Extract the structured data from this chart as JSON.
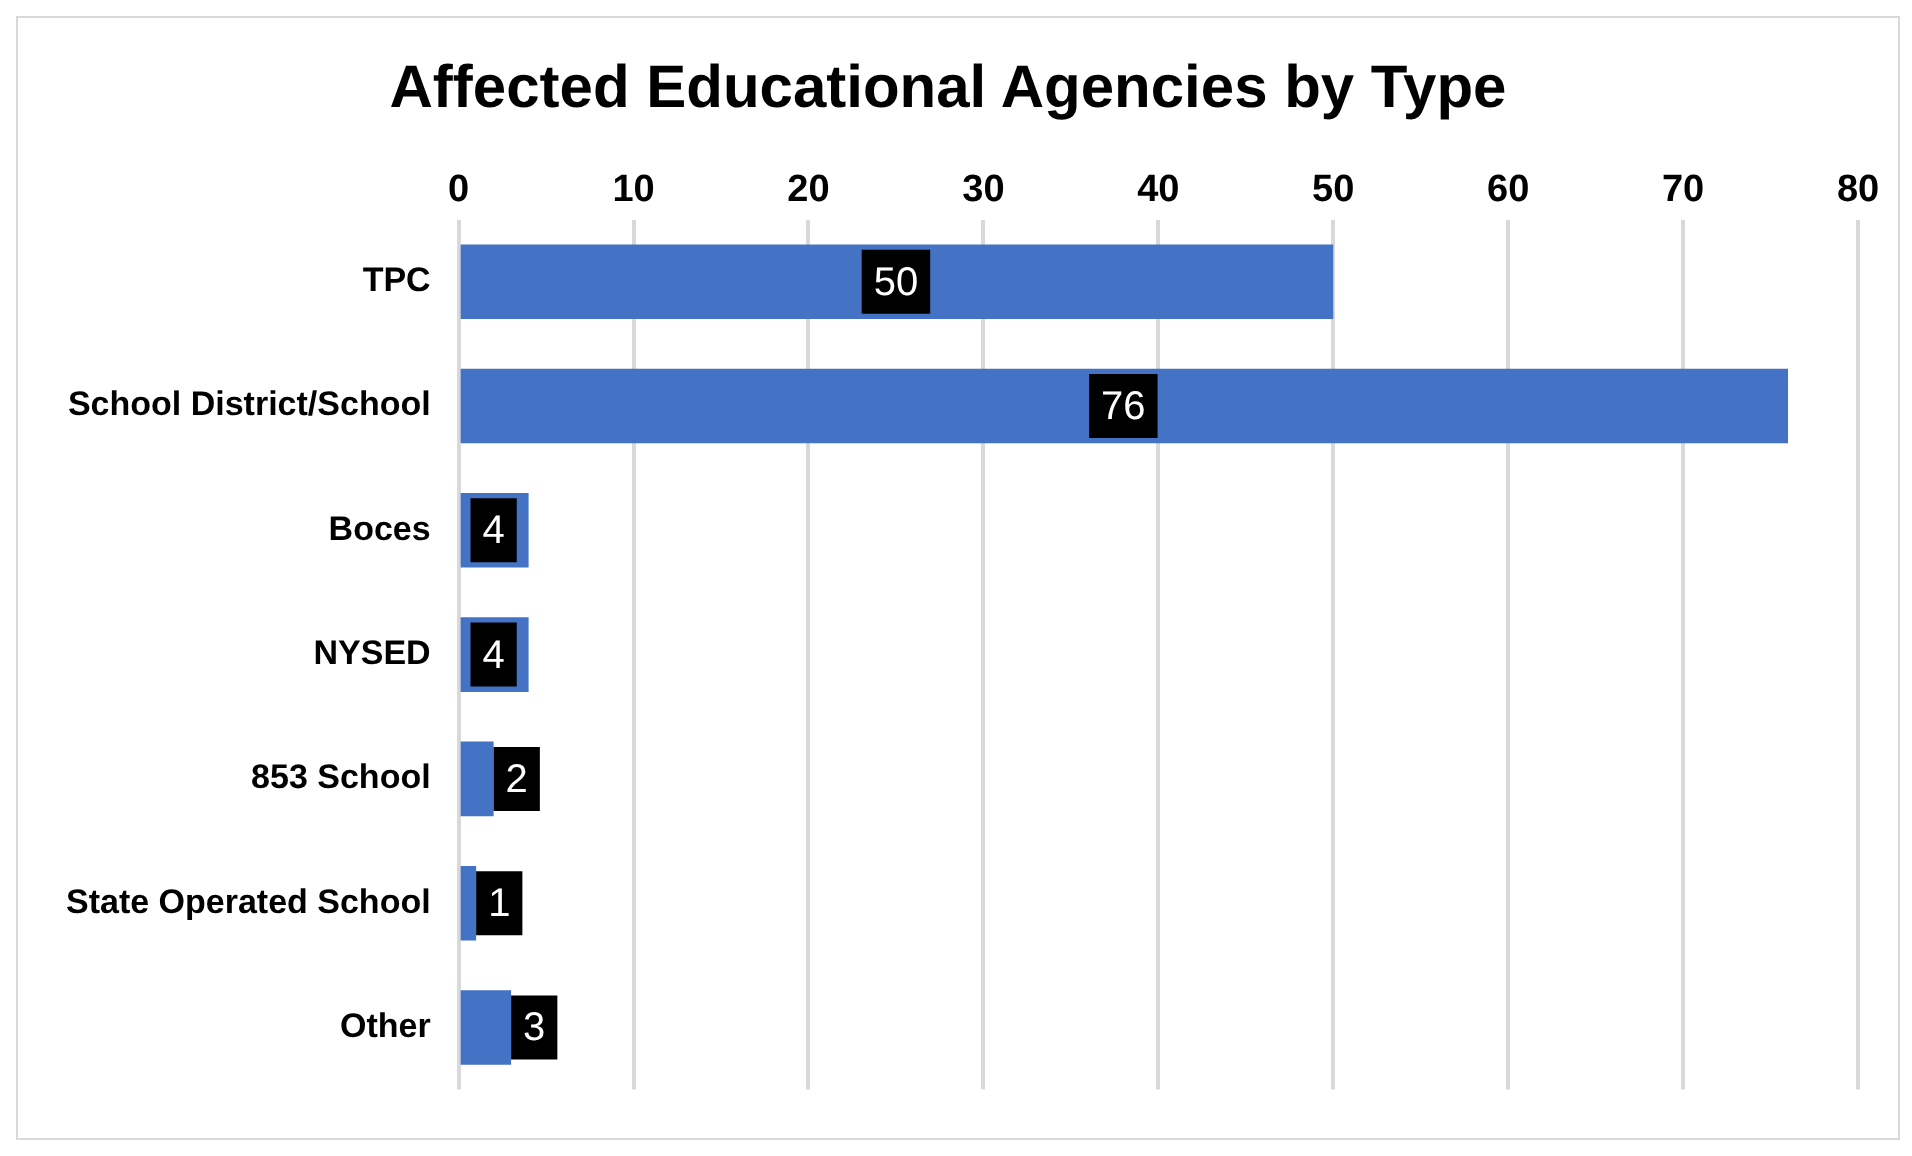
{
  "chart_data": {
    "type": "bar",
    "orientation": "horizontal",
    "title": "Affected Educational Agencies by Type",
    "categories": [
      "TPC",
      "School District/School",
      "Boces",
      "NYSED",
      "853 School",
      "State Operated School",
      "Other"
    ],
    "values": [
      50,
      76,
      4,
      4,
      2,
      1,
      3
    ],
    "color": "#4472c4",
    "xlim": [
      0,
      80
    ],
    "xticks": [
      0,
      10,
      20,
      30,
      40,
      50,
      60,
      70,
      80
    ],
    "grid": "x",
    "data_labels": true,
    "legend": false
  }
}
